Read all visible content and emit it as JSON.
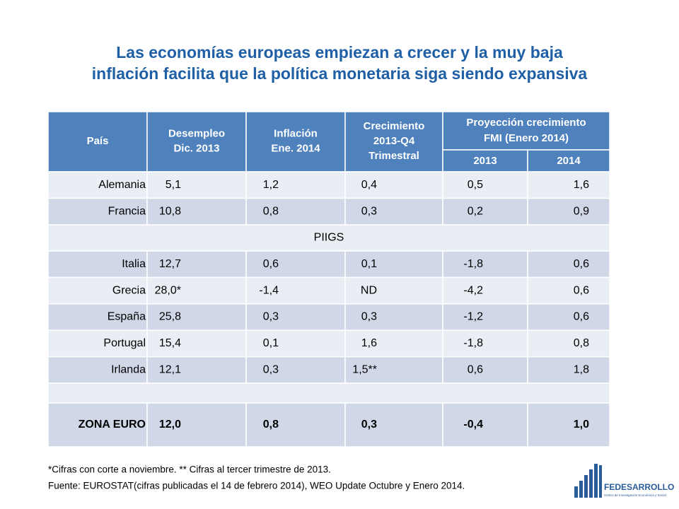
{
  "title": {
    "line1": "Las economías europeas empiezan a crecer y la muy baja",
    "line2": "inflación facilita que la política monetaria siga siendo expansiva"
  },
  "table": {
    "headers": [
      [
        "País"
      ],
      [
        "Desempleo",
        "Dic. 2013"
      ],
      [
        "Inflación",
        "Ene. 2014"
      ],
      [
        "Crecimiento",
        "2013-Q4",
        "Trimestral"
      ]
    ],
    "group_header": [
      "Proyección crecimiento",
      "FMI  (Enero 2014)"
    ],
    "sub_headers": [
      "2013",
      "2014"
    ],
    "rows": [
      [
        "Alemania",
        "5,1",
        "1,2",
        "0,4",
        "0,5",
        "1,6"
      ],
      [
        "Francia",
        "10,8",
        "0,8",
        "0,3",
        "0,2",
        "0,9"
      ]
    ],
    "section_label": "PIIGS",
    "section_rows": [
      [
        "Italia",
        "12,7",
        "0,6",
        "0,1",
        "-1,8",
        "0,6"
      ],
      [
        "Grecia",
        "28,0*",
        "-1,4",
        "ND",
        "-4,2",
        "0,6"
      ],
      [
        "España",
        "25,8",
        "0,3",
        "0,3",
        "-1,2",
        "0,6"
      ],
      [
        "Portugal",
        "15,4",
        "0,1",
        "1,6",
        "-1,8",
        "0,8"
      ],
      [
        "Irlanda",
        "12,1",
        "0,3",
        "1,5**",
        "0,6",
        "1,8"
      ]
    ],
    "total_row": [
      "ZONA EURO",
      "12,0",
      "0,8",
      "0,3",
      "-0,4",
      "1,0"
    ]
  },
  "footnotes": [
    "*Cifras con corte a noviembre. ** Cifras al tercer trimestre de 2013.",
    "Fuente: EUROSTAT(cifras publicadas el 14 de febrero 2014), WEO Update Octubre y Enero 2014."
  ],
  "logo": {
    "name": "FEDESARROLLO",
    "tagline": "Centro de Investigación Económica y Social"
  }
}
